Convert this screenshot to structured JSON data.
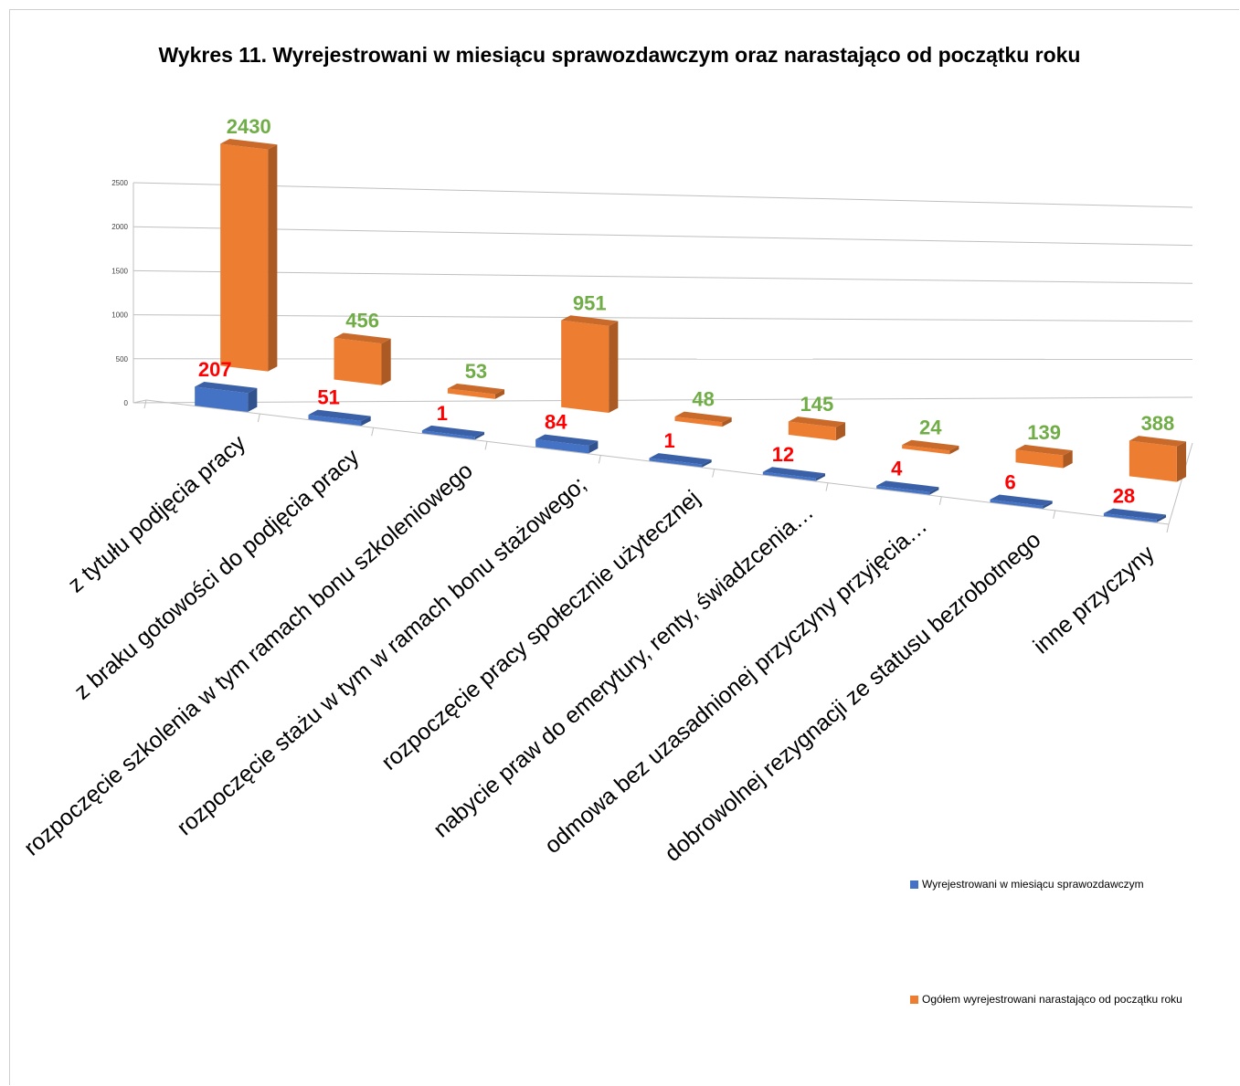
{
  "chart_data": {
    "type": "bar",
    "title": "Wykres 11. Wyrejestrowani w miesiącu sprawozdawczym oraz narastająco od początku roku",
    "categories": [
      "z tytułu podjęcia pracy",
      "z braku gotowości do podjęcia pracy",
      "rozpoczęcie szkolenia w tym ramach bonu szkoleniowego",
      "rozpoczęcie  stażu w tym w ramach bonu stażowego;",
      "rozpoczęcie pracy społecznie użytecznej",
      "nabycie praw do emerytury, renty, świadzcenia…",
      "odmowa bez uzasadnionej przyczyny przyjęcia…",
      "dobrowolnej rezygnacji ze statusu bezrobotnego",
      "inne przyczyny"
    ],
    "series": [
      {
        "name": "Wyrejestrowani w miesiącu sprawozdawczym",
        "values": [
          207,
          51,
          1,
          84,
          1,
          12,
          4,
          6,
          28
        ],
        "color": "#4472C4",
        "label_color": "#FF0000"
      },
      {
        "name": "Ogółem wyrejestrowani narastająco od początku roku",
        "values": [
          2430,
          456,
          53,
          951,
          48,
          145,
          24,
          139,
          388
        ],
        "color": "#ED7D31",
        "label_color": "#70AD47"
      }
    ],
    "ylim": [
      0,
      2500
    ],
    "yticks": [
      "0",
      "500",
      "1000",
      "1500",
      "2000",
      "2500"
    ],
    "grid": true,
    "legend": "right",
    "view": "3d"
  }
}
